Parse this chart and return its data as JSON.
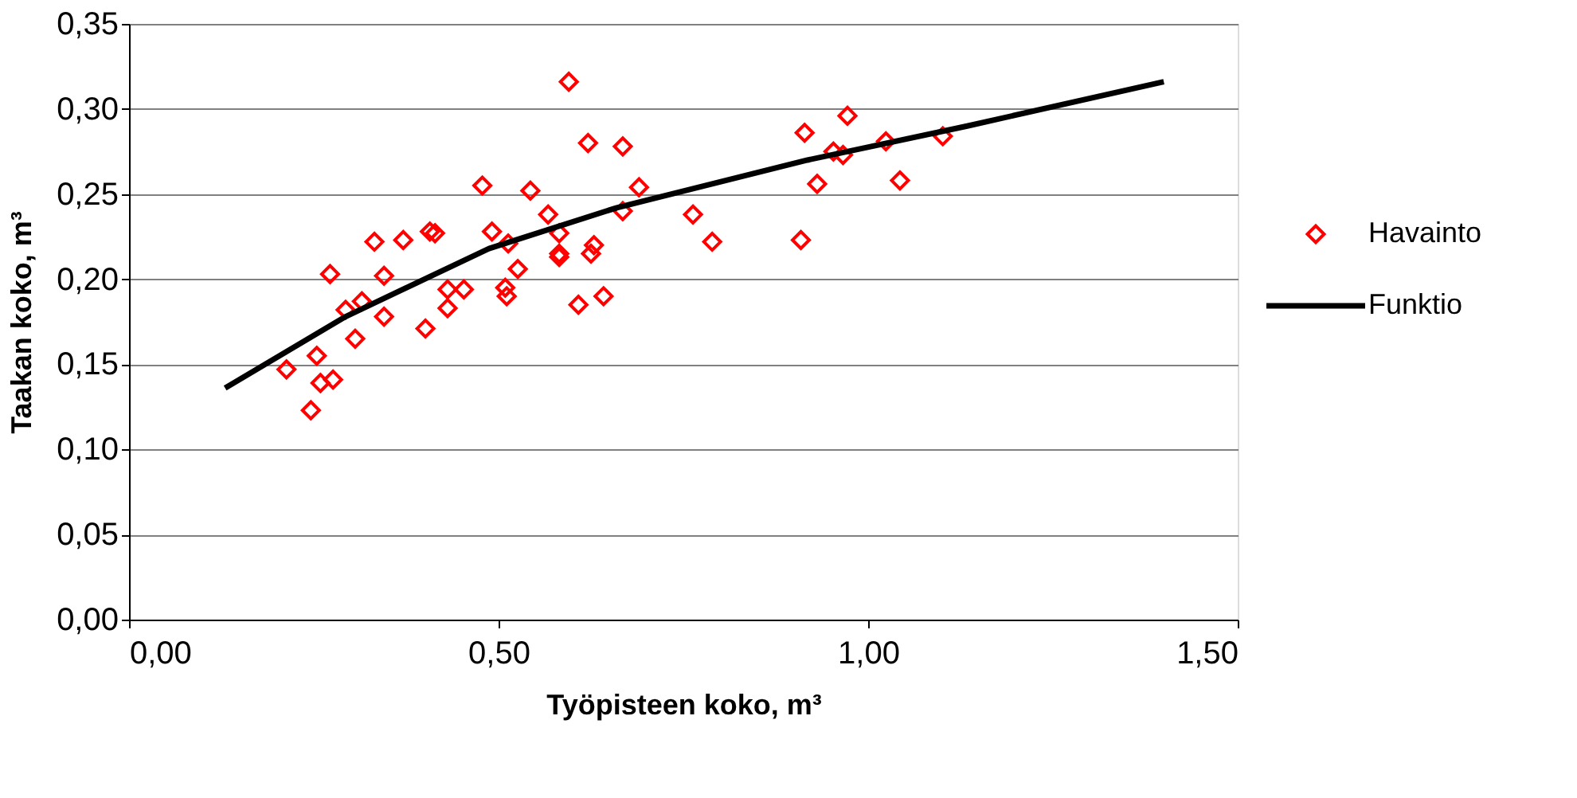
{
  "chart_data": {
    "type": "scatter",
    "xlabel": "Työpisteen koko, m³",
    "ylabel": "Taakan koko, m³",
    "xlim": [
      0,
      1.5
    ],
    "xticks": [
      {
        "value": 0,
        "label": "0,00"
      },
      {
        "value": 0.5,
        "label": "0,50"
      },
      {
        "value": 1,
        "label": "1,00"
      },
      {
        "value": 1.5,
        "label": "1,50"
      }
    ],
    "ylim": [
      0,
      0.35
    ],
    "yticks": [
      {
        "value": 0,
        "label": "0,00"
      },
      {
        "value": 0.05,
        "label": "0,05"
      },
      {
        "value": 0.1,
        "label": "0,10"
      },
      {
        "value": 0.15,
        "label": "0,15"
      },
      {
        "value": 0.2,
        "label": "0,20"
      },
      {
        "value": 0.25,
        "label": "0,25"
      },
      {
        "value": 0.3,
        "label": "0,30"
      },
      {
        "value": 0.35,
        "label": "0,35"
      }
    ],
    "grid": "y",
    "legend": "right",
    "series": [
      {
        "name": "Havainto",
        "color": "#ff0000",
        "marker": "diamond",
        "x": [
          0.213,
          0.246,
          0.254,
          0.259,
          0.276,
          0.272,
          0.293,
          0.306,
          0.315,
          0.332,
          0.345,
          0.345,
          0.371,
          0.401,
          0.407,
          0.414,
          0.431,
          0.431,
          0.453,
          0.478,
          0.491,
          0.509,
          0.513,
          0.511,
          0.526,
          0.543,
          0.567,
          0.582,
          0.582,
          0.582,
          0.595,
          0.608,
          0.621,
          0.625,
          0.629,
          0.642,
          0.668,
          0.668,
          0.69,
          0.763,
          0.789,
          0.909,
          0.914,
          0.931,
          0.953,
          0.966,
          0.972,
          1.024,
          1.043,
          1.101
        ],
        "values": [
          0.147,
          0.123,
          0.155,
          0.139,
          0.141,
          0.203,
          0.182,
          0.165,
          0.187,
          0.222,
          0.202,
          0.178,
          0.223,
          0.171,
          0.228,
          0.227,
          0.194,
          0.183,
          0.194,
          0.255,
          0.228,
          0.195,
          0.221,
          0.19,
          0.206,
          0.252,
          0.238,
          0.227,
          0.215,
          0.213,
          0.316,
          0.185,
          0.28,
          0.215,
          0.22,
          0.19,
          0.24,
          0.278,
          0.254,
          0.238,
          0.222,
          0.223,
          0.286,
          0.256,
          0.275,
          0.273,
          0.296,
          0.281,
          0.258,
          0.284
        ]
      },
      {
        "name": "Funktio",
        "type": "line",
        "color": "#000000",
        "marker": "none",
        "line_style": "solid",
        "x": [
          0.13,
          0.293,
          0.487,
          0.66,
          0.918,
          1.134,
          1.4
        ],
        "values": [
          0.136,
          0.178,
          0.218,
          0.242,
          0.27,
          0.29,
          0.316
        ]
      }
    ]
  }
}
